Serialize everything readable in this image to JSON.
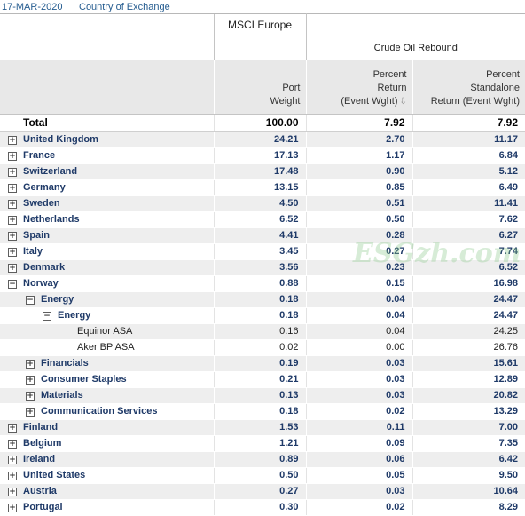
{
  "header": {
    "date": "17-MAR-2020",
    "group_by": "Country of Exchange"
  },
  "columns": {
    "benchmark": "MSCI Europe",
    "scenario": "Crude Oil Rebound",
    "port_weight": [
      "Port",
      "Weight"
    ],
    "pct_return_event": [
      "Percent",
      "Return",
      "(Event Wght)"
    ],
    "pct_standalone": [
      "Percent",
      "Standalone",
      "Return (Event Wght)"
    ]
  },
  "total": {
    "label": "Total",
    "weight": "100.00",
    "ret": "7.92",
    "standalone": "7.92"
  },
  "rows": [
    {
      "label": "United Kingdom",
      "level": 0,
      "toggle": "+",
      "weight": "24.21",
      "ret": "2.70",
      "standalone": "11.17"
    },
    {
      "label": "France",
      "level": 0,
      "toggle": "+",
      "weight": "17.13",
      "ret": "1.17",
      "standalone": "6.84"
    },
    {
      "label": "Switzerland",
      "level": 0,
      "toggle": "+",
      "weight": "17.48",
      "ret": "0.90",
      "standalone": "5.12"
    },
    {
      "label": "Germany",
      "level": 0,
      "toggle": "+",
      "weight": "13.15",
      "ret": "0.85",
      "standalone": "6.49"
    },
    {
      "label": "Sweden",
      "level": 0,
      "toggle": "+",
      "weight": "4.50",
      "ret": "0.51",
      "standalone": "11.41"
    },
    {
      "label": "Netherlands",
      "level": 0,
      "toggle": "+",
      "weight": "6.52",
      "ret": "0.50",
      "standalone": "7.62"
    },
    {
      "label": "Spain",
      "level": 0,
      "toggle": "+",
      "weight": "4.41",
      "ret": "0.28",
      "standalone": "6.27"
    },
    {
      "label": "Italy",
      "level": 0,
      "toggle": "+",
      "weight": "3.45",
      "ret": "0.27",
      "standalone": "7.74"
    },
    {
      "label": "Denmark",
      "level": 0,
      "toggle": "+",
      "weight": "3.56",
      "ret": "0.23",
      "standalone": "6.52"
    },
    {
      "label": "Norway",
      "level": 0,
      "toggle": "−",
      "weight": "0.88",
      "ret": "0.15",
      "standalone": "16.98"
    },
    {
      "label": "Energy",
      "level": 1,
      "toggle": "−",
      "weight": "0.18",
      "ret": "0.04",
      "standalone": "24.47"
    },
    {
      "label": "Energy",
      "level": 2,
      "toggle": "−",
      "weight": "0.18",
      "ret": "0.04",
      "standalone": "24.47"
    },
    {
      "label": "Equinor ASA",
      "level": 3,
      "toggle": "",
      "weight": "0.16",
      "ret": "0.04",
      "standalone": "24.25"
    },
    {
      "label": "Aker BP ASA",
      "level": 3,
      "toggle": "",
      "weight": "0.02",
      "ret": "0.00",
      "standalone": "26.76"
    },
    {
      "label": "Financials",
      "level": 1,
      "toggle": "+",
      "weight": "0.19",
      "ret": "0.03",
      "standalone": "15.61"
    },
    {
      "label": "Consumer Staples",
      "level": 1,
      "toggle": "+",
      "weight": "0.21",
      "ret": "0.03",
      "standalone": "12.89"
    },
    {
      "label": "Materials",
      "level": 1,
      "toggle": "+",
      "weight": "0.13",
      "ret": "0.03",
      "standalone": "20.82"
    },
    {
      "label": "Communication Services",
      "level": 1,
      "toggle": "+",
      "weight": "0.18",
      "ret": "0.02",
      "standalone": "13.29"
    },
    {
      "label": "Finland",
      "level": 0,
      "toggle": "+",
      "weight": "1.53",
      "ret": "0.11",
      "standalone": "7.00"
    },
    {
      "label": "Belgium",
      "level": 0,
      "toggle": "+",
      "weight": "1.21",
      "ret": "0.09",
      "standalone": "7.35"
    },
    {
      "label": "Ireland",
      "level": 0,
      "toggle": "+",
      "weight": "0.89",
      "ret": "0.06",
      "standalone": "6.42"
    },
    {
      "label": "United States",
      "level": 0,
      "toggle": "+",
      "weight": "0.50",
      "ret": "0.05",
      "standalone": "9.50"
    },
    {
      "label": "Austria",
      "level": 0,
      "toggle": "+",
      "weight": "0.27",
      "ret": "0.03",
      "standalone": "10.64"
    },
    {
      "label": "Portugal",
      "level": 0,
      "toggle": "+",
      "weight": "0.30",
      "ret": "0.02",
      "standalone": "8.29"
    }
  ],
  "watermark": "ESGzh.com"
}
